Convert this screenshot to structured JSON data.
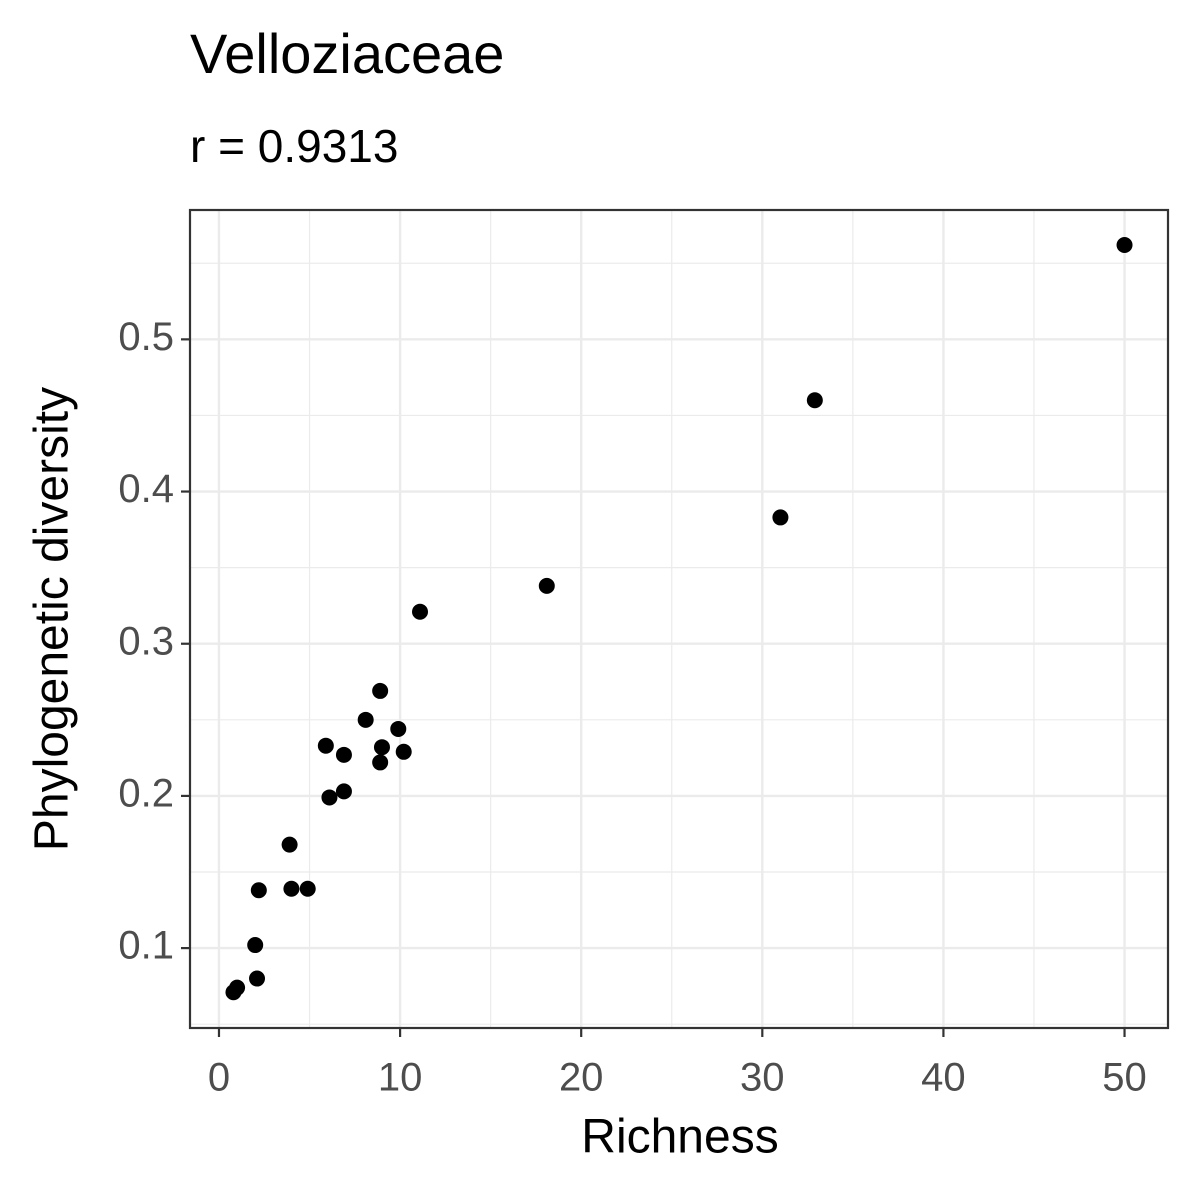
{
  "chart_data": {
    "type": "scatter",
    "title": "Velloziaceae",
    "subtitle": "r = 0.9313",
    "x_label": "Richness",
    "y_label": "Phylogenetic diversity",
    "color": "#000000",
    "grid": true,
    "xlim": [
      -1.6,
      52.4
    ],
    "ylim": [
      0.0475,
      0.585
    ],
    "xticks": [
      0,
      10,
      20,
      30,
      40,
      50
    ],
    "yticks": [
      0.1,
      0.2,
      0.3,
      0.4,
      0.5
    ],
    "x": [
      50,
      32.9,
      31.0,
      18.1,
      11.1,
      8.9,
      8.1,
      9.9,
      5.9,
      9.0,
      10.2,
      6.9,
      8.9,
      6.9,
      6.1,
      3.9,
      2.2,
      4.0,
      4.9,
      2.0,
      2.1,
      1.0,
      0.8
    ],
    "values": [
      0.562,
      0.46,
      0.383,
      0.338,
      0.321,
      0.269,
      0.25,
      0.244,
      0.233,
      0.232,
      0.229,
      0.227,
      0.222,
      0.203,
      0.199,
      0.168,
      0.138,
      0.139,
      0.139,
      0.102,
      0.08,
      0.074,
      0.071
    ]
  }
}
